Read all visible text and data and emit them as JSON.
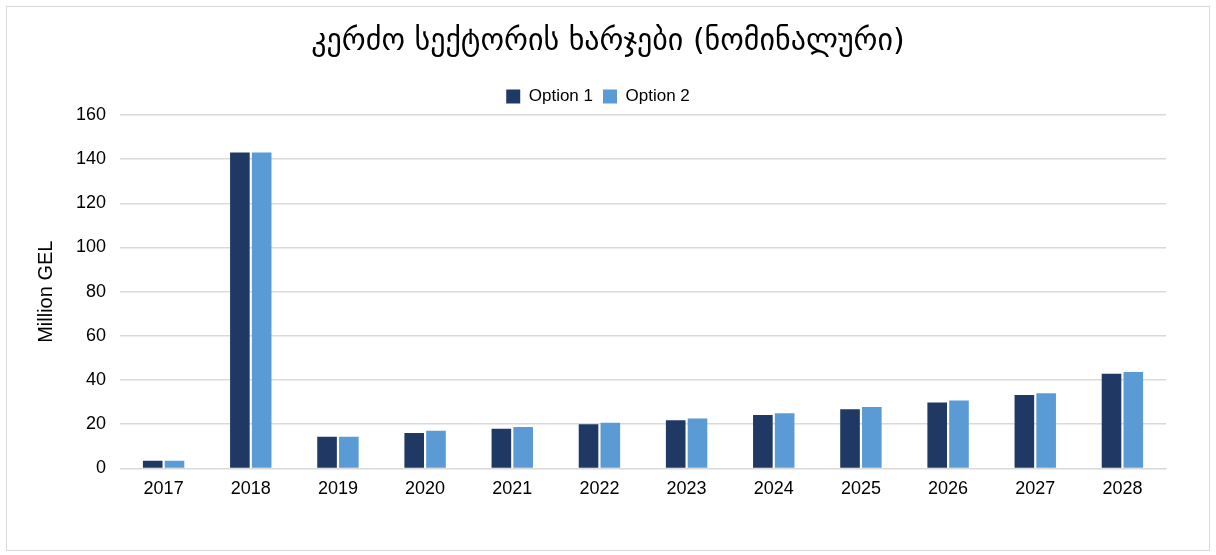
{
  "chart_data": {
    "type": "bar",
    "title": "კერძო სექტორის ხარჯები (ნომინალური)",
    "ylabel": "Million GEL",
    "categories": [
      "2017",
      "2018",
      "2019",
      "2020",
      "2021",
      "2022",
      "2023",
      "2024",
      "2025",
      "2026",
      "2027",
      "2028"
    ],
    "series": [
      {
        "name": "Option 1",
        "color": "#203864",
        "values": [
          3.5,
          143,
          14.3,
          16,
          18,
          20,
          21.8,
          24.2,
          26.8,
          29.8,
          33.2,
          42.9
        ]
      },
      {
        "name": "Option 2",
        "color": "#5b9bd5",
        "values": [
          3.5,
          143,
          14.3,
          17,
          18.8,
          20.7,
          22.6,
          25,
          27.8,
          30.7,
          34,
          43.7
        ]
      }
    ],
    "ylim": [
      0,
      160
    ],
    "yticks": [
      0,
      20,
      40,
      60,
      80,
      100,
      120,
      140,
      160
    ],
    "grid": "y",
    "legend": "top"
  }
}
